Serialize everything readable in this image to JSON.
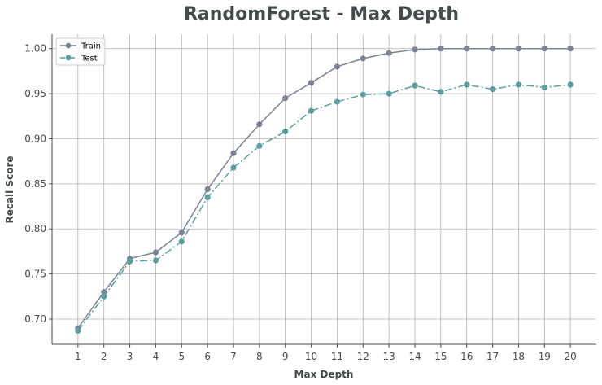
{
  "chart_data": {
    "type": "line",
    "title": "RandomForest - Max Depth",
    "xlabel": "Max Depth",
    "ylabel": "Recall Score",
    "x": [
      1,
      2,
      3,
      4,
      5,
      6,
      7,
      8,
      9,
      10,
      11,
      12,
      13,
      14,
      15,
      16,
      17,
      18,
      19,
      20
    ],
    "series": [
      {
        "name": "Train",
        "color": "#7a8494",
        "linestyle": "solid",
        "values": [
          0.69,
          0.73,
          0.767,
          0.774,
          0.796,
          0.844,
          0.884,
          0.916,
          0.945,
          0.962,
          0.98,
          0.989,
          0.995,
          0.999,
          1.0,
          1.0,
          1.0,
          1.0,
          1.0,
          1.0
        ]
      },
      {
        "name": "Test",
        "color": "#5a9ea0",
        "linestyle": "dashdot",
        "values": [
          0.687,
          0.725,
          0.764,
          0.765,
          0.786,
          0.835,
          0.868,
          0.892,
          0.908,
          0.931,
          0.941,
          0.949,
          0.95,
          0.959,
          0.952,
          0.96,
          0.955,
          0.96,
          0.957,
          0.96
        ]
      }
    ],
    "xticks": [
      1,
      2,
      3,
      4,
      5,
      6,
      7,
      8,
      9,
      10,
      11,
      12,
      13,
      14,
      15,
      16,
      17,
      18,
      19,
      20
    ],
    "yticks": [
      "0.70",
      "0.75",
      "0.80",
      "0.85",
      "0.90",
      "0.95",
      "1.00"
    ],
    "xlim": [
      0.0,
      21.0
    ],
    "ylim": [
      0.672,
      1.016
    ],
    "grid": true,
    "legend": "top-left"
  }
}
